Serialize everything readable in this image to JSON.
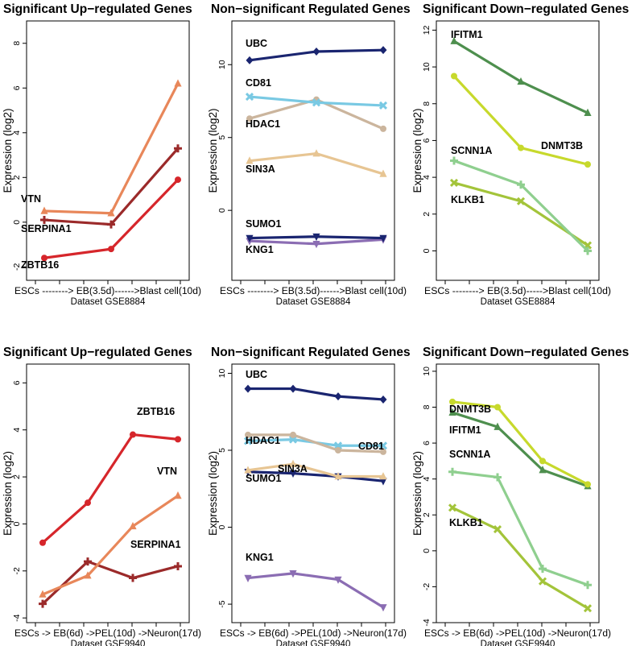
{
  "chart_data": [
    {
      "type": "line",
      "title": "Significant Up−regulated Genes",
      "ylabel": "Expression (log2)",
      "xlabel": "ESCs --------> EB(3.5d)------>Blast cell(10d)",
      "dataset": "Dataset GSE8884",
      "ylim": [
        -2.6,
        9.0
      ],
      "yticks": [
        "8",
        "6",
        "4",
        "2",
        "0",
        "-2"
      ],
      "ytick_values": [
        8,
        6,
        4,
        2,
        0,
        -2
      ],
      "x": [
        0,
        1,
        2
      ],
      "series": [
        {
          "name": "VTN",
          "values": [
            0.5,
            0.4,
            6.2
          ],
          "color": "#e8875a",
          "marker": "triangle"
        },
        {
          "name": "SERPINA1",
          "values": [
            0.1,
            -0.1,
            3.3
          ],
          "color": "#9b2a2a",
          "marker": "plus"
        },
        {
          "name": "ZBTB16",
          "values": [
            -1.6,
            -1.2,
            1.9
          ],
          "color": "#d6262b",
          "marker": "circle"
        }
      ]
    },
    {
      "type": "line",
      "title": "Non−significant Regulated Genes",
      "ylabel": "Expression (log2)",
      "xlabel": "ESCs --------> EB(3.5d)------>Blast cell(10d)",
      "dataset": "Dataset GSE8884",
      "ylim": [
        -4.8,
        13.0
      ],
      "yticks": [
        "10",
        "5",
        "0"
      ],
      "ytick_values": [
        10,
        5,
        0
      ],
      "x": [
        0,
        1,
        2
      ],
      "series": [
        {
          "name": "UBC",
          "values": [
            10.3,
            10.9,
            11.0
          ],
          "color": "#1a2570",
          "marker": "diamond"
        },
        {
          "name": "CD81",
          "values": [
            7.8,
            7.4,
            7.2
          ],
          "color": "#79c9e3",
          "marker": "cross"
        },
        {
          "name": "HDAC1",
          "values": [
            6.3,
            7.6,
            5.6
          ],
          "color": "#cbb59d",
          "marker": "circle"
        },
        {
          "name": "SIN3A",
          "values": [
            3.4,
            3.9,
            2.5
          ],
          "color": "#e7c593",
          "marker": "triangle"
        },
        {
          "name": "SUMO1",
          "values": [
            -1.9,
            -1.8,
            -1.9
          ],
          "color": "#1a2570",
          "marker": "triangle-down"
        },
        {
          "name": "KNG1",
          "values": [
            -2.1,
            -2.3,
            -2.0
          ],
          "color": "#8b6db3",
          "marker": "triangle-down"
        }
      ]
    },
    {
      "type": "line",
      "title": "Significant Down−regulated Genes",
      "ylabel": "Expression (log2)",
      "xlabel": "ESCs --------> EB(3.5d)----->Blast cell(10d)",
      "dataset": "Dataset GSE8884",
      "ylim": [
        -1.6,
        12.5
      ],
      "yticks": [
        "12",
        "10",
        "8",
        "6",
        "4",
        "2",
        "0"
      ],
      "ytick_values": [
        12,
        10,
        8,
        6,
        4,
        2,
        0
      ],
      "x": [
        0,
        1,
        2
      ],
      "series": [
        {
          "name": "IFITM1",
          "values": [
            11.4,
            9.2,
            7.5
          ],
          "color": "#4e8f4e",
          "marker": "triangle"
        },
        {
          "name": "DNMT3B",
          "values": [
            9.5,
            5.6,
            4.7
          ],
          "color": "#c7d92c",
          "marker": "circle"
        },
        {
          "name": "SCNN1A",
          "values": [
            4.9,
            3.6,
            0.0
          ],
          "color": "#8fcf8f",
          "marker": "plus"
        },
        {
          "name": "KLKB1",
          "values": [
            3.7,
            2.7,
            0.3
          ],
          "color": "#a3c43a",
          "marker": "cross"
        }
      ]
    },
    {
      "type": "line",
      "title": "Significant Up−regulated Genes",
      "ylabel": "Expression (log2)",
      "xlabel": "ESCs -> EB(6d) ->PEL(10d) ->Neuron(17d)",
      "dataset": "Dataset GSE9940",
      "ylim": [
        -4.2,
        6.8
      ],
      "yticks": [
        "6",
        "4",
        "2",
        "0",
        "-2",
        "-4"
      ],
      "ytick_values": [
        6,
        4,
        2,
        0,
        -2,
        -4
      ],
      "x": [
        0,
        1,
        2,
        3
      ],
      "series": [
        {
          "name": "ZBTB16",
          "values": [
            -0.8,
            0.9,
            3.8,
            3.6
          ],
          "color": "#d6262b",
          "marker": "circle"
        },
        {
          "name": "VTN",
          "values": [
            -3.0,
            -2.2,
            -0.1,
            1.2
          ],
          "color": "#e8875a",
          "marker": "triangle"
        },
        {
          "name": "SERPINA1",
          "values": [
            -3.4,
            -1.6,
            -2.3,
            -1.8
          ],
          "color": "#9b2a2a",
          "marker": "plus"
        }
      ]
    },
    {
      "type": "line",
      "title": "Non−significant Regulated Genes",
      "ylabel": "Expression (log2)",
      "xlabel": "ESCs -> EB(6d) ->PEL(10d) ->Neuron(17d)",
      "dataset": "Dataset GSE9940",
      "ylim": [
        -6.2,
        10.6
      ],
      "yticks": [
        "10",
        "5",
        "0",
        "-5"
      ],
      "ytick_values": [
        10,
        5,
        0,
        -5
      ],
      "x": [
        0,
        1,
        2,
        3
      ],
      "series": [
        {
          "name": "UBC",
          "values": [
            9.0,
            9.0,
            8.5,
            8.3
          ],
          "color": "#1a2570",
          "marker": "diamond"
        },
        {
          "name": "HDAC1",
          "values": [
            6.0,
            6.0,
            5.0,
            4.9
          ],
          "color": "#cbb59d",
          "marker": "circle"
        },
        {
          "name": "CD81",
          "values": [
            5.6,
            5.7,
            5.3,
            5.3
          ],
          "color": "#79c9e3",
          "marker": "cross"
        },
        {
          "name": "SIN3A",
          "values": [
            3.7,
            4.1,
            3.3,
            3.3
          ],
          "color": "#e7c593",
          "marker": "triangle"
        },
        {
          "name": "SUMO1",
          "values": [
            3.6,
            3.5,
            3.3,
            3.0
          ],
          "color": "#1a2570",
          "marker": "triangle-down"
        },
        {
          "name": "KNG1",
          "values": [
            -3.3,
            -3.0,
            -3.4,
            -5.2
          ],
          "color": "#8b6db3",
          "marker": "triangle-down"
        }
      ]
    },
    {
      "type": "line",
      "title": "Significant Down−regulated Genes",
      "ylabel": "Expression (log2)",
      "xlabel": "ESCs -> EB(6d) ->PEL(10d) ->Neuron(17d)",
      "dataset": "Dataset GSE9940",
      "ylim": [
        -4.0,
        10.4
      ],
      "yticks": [
        "10",
        "8",
        "6",
        "4",
        "2",
        "0",
        "-2",
        "-4"
      ],
      "ytick_values": [
        10,
        8,
        6,
        4,
        2,
        0,
        -2,
        -4
      ],
      "x": [
        0,
        1,
        2,
        3
      ],
      "series": [
        {
          "name": "DNMT3B",
          "values": [
            8.3,
            8.0,
            5.0,
            3.7
          ],
          "color": "#c7d92c",
          "marker": "circle"
        },
        {
          "name": "IFITM1",
          "values": [
            7.7,
            6.9,
            4.5,
            3.6
          ],
          "color": "#4e8f4e",
          "marker": "triangle"
        },
        {
          "name": "SCNN1A",
          "values": [
            4.4,
            4.1,
            -1.0,
            -1.9
          ],
          "color": "#8fcf8f",
          "marker": "plus"
        },
        {
          "name": "KLKB1",
          "values": [
            2.4,
            1.2,
            -1.7,
            -3.2
          ],
          "color": "#a3c43a",
          "marker": "cross"
        }
      ]
    }
  ]
}
